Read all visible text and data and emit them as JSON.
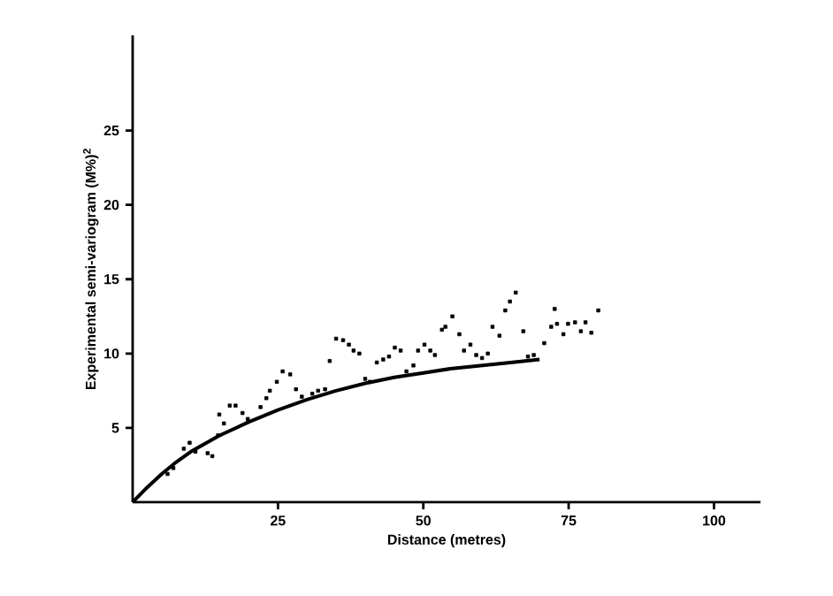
{
  "chart_data": {
    "type": "scatter",
    "xlabel": "Distance (metres)",
    "ylabel": "Experimental semi-variogram (M%)$^{2}$",
    "xlim": [
      0,
      108
    ],
    "ylim": [
      0,
      31.4
    ],
    "xticks": [
      25,
      50,
      75,
      100
    ],
    "yticks": [
      5,
      10,
      15,
      20,
      25
    ],
    "grid": false,
    "marker": "square",
    "series": [
      {
        "color": "#000000",
        "x": [
          6,
          7,
          8.8,
          9.8,
          10.8,
          12.9,
          13.7,
          14.7,
          14.9,
          15.7,
          16.7,
          17.7,
          18.9,
          19.8,
          22.0,
          23.0,
          23.6,
          24.8,
          25.8,
          27.1,
          28.1,
          29.1,
          30.9,
          31.9,
          33.1,
          33.9,
          35.0,
          36.2,
          37.2,
          38.0,
          39.0,
          40.0,
          40.8,
          42.0,
          43.1,
          44.1,
          45.1,
          46.1,
          47.1,
          48.3,
          49.1,
          50.2,
          51.2,
          52.0,
          53.2,
          53.8,
          55.0,
          56.2,
          57.0,
          58.1,
          59.1,
          60.1,
          61.1,
          61.9,
          63.1,
          64.1,
          64.9,
          65.9,
          67.2,
          68.0,
          69.0,
          70.8,
          72.0,
          72.6,
          73.0,
          74.1,
          74.9,
          76.1,
          77.1,
          77.9,
          78.9,
          80.1
        ],
        "values": [
          1.9,
          2.3,
          3.6,
          4.0,
          3.4,
          3.3,
          3.1,
          4.5,
          5.9,
          5.3,
          6.5,
          6.5,
          6.0,
          5.6,
          6.4,
          7.0,
          7.5,
          8.1,
          8.8,
          8.6,
          7.6,
          7.1,
          7.3,
          7.5,
          7.6,
          9.5,
          11.0,
          10.9,
          10.6,
          10.2,
          10.0,
          8.3,
          8.1,
          9.4,
          9.6,
          9.8,
          10.4,
          10.2,
          8.8,
          9.2,
          10.2,
          10.6,
          10.2,
          9.9,
          11.6,
          11.8,
          12.5,
          11.3,
          10.2,
          10.6,
          9.9,
          9.7,
          10.0,
          11.8,
          11.2,
          12.9,
          13.5,
          14.1,
          11.5,
          9.8,
          9.9,
          10.7,
          11.8,
          13.0,
          12.0,
          11.3,
          12.0,
          12.1,
          11.5,
          12.1,
          11.4,
          12.9
        ]
      },
      {
        "type": "line",
        "color": "#000000",
        "marker": "none",
        "line_style": "solid",
        "x": [
          0,
          2.5,
          5,
          7.5,
          10,
          15,
          20,
          25,
          30,
          35,
          40,
          45,
          50,
          55,
          60,
          65,
          70
        ],
        "values": [
          0,
          1.0,
          1.9,
          2.7,
          3.4,
          4.5,
          5.4,
          6.2,
          6.9,
          7.5,
          8.0,
          8.4,
          8.7,
          9.0,
          9.2,
          9.4,
          9.6
        ]
      }
    ]
  }
}
